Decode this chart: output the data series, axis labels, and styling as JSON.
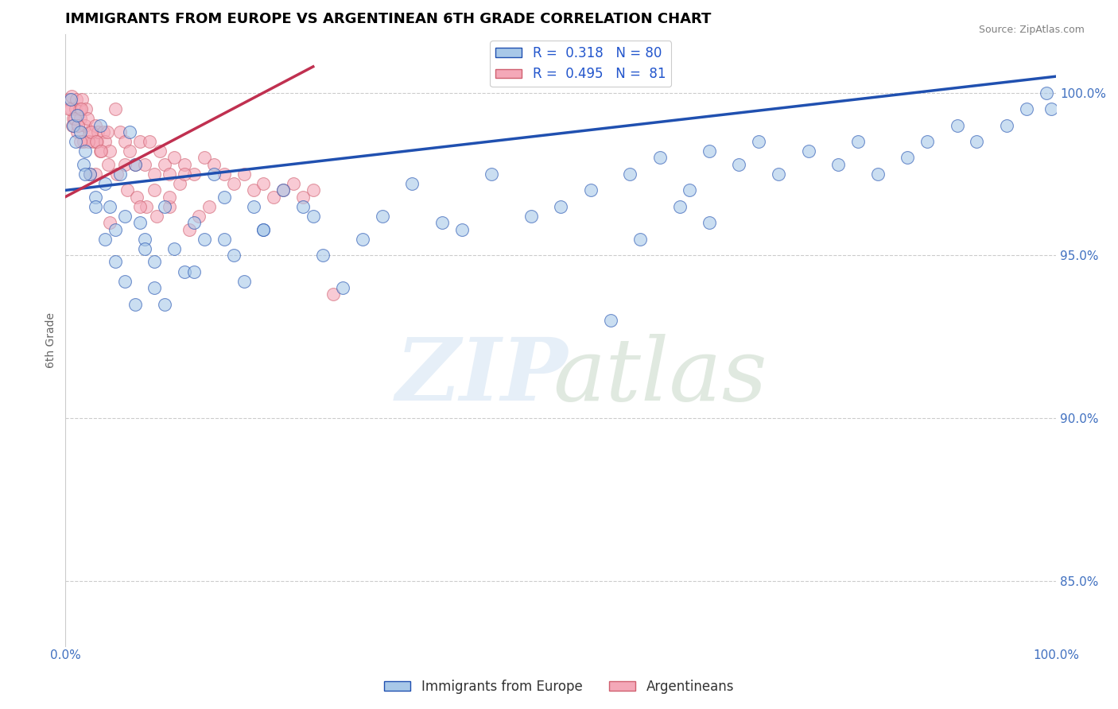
{
  "title": "IMMIGRANTS FROM EUROPE VS ARGENTINEAN 6TH GRADE CORRELATION CHART",
  "source": "Source: ZipAtlas.com",
  "ylabel": "6th Grade",
  "xlim": [
    0.0,
    100.0
  ],
  "ylim": [
    83.0,
    101.8
  ],
  "yticks": [
    85.0,
    90.0,
    95.0,
    100.0
  ],
  "ytick_labels": [
    "85.0%",
    "90.0%",
    "95.0%",
    "100.0%"
  ],
  "xtick_labels": [
    "0.0%",
    "100.0%"
  ],
  "blue_color": "#a8c8e8",
  "pink_color": "#f4a8b8",
  "trend_blue_color": "#2050b0",
  "trend_pink_color": "#c03050",
  "blue_R": 0.318,
  "blue_N": 80,
  "pink_R": 0.495,
  "pink_N": 81,
  "blue_trend_x": [
    0.0,
    100.0
  ],
  "blue_trend_y": [
    97.0,
    100.5
  ],
  "pink_trend_x": [
    0.0,
    25.0
  ],
  "pink_trend_y": [
    96.8,
    100.8
  ],
  "blue_scatter_x": [
    0.5,
    0.8,
    1.0,
    1.2,
    1.5,
    1.8,
    2.0,
    2.5,
    3.0,
    3.5,
    4.0,
    4.5,
    5.0,
    5.5,
    6.0,
    6.5,
    7.0,
    7.5,
    8.0,
    9.0,
    10.0,
    11.0,
    12.0,
    13.0,
    14.0,
    15.0,
    16.0,
    17.0,
    18.0,
    19.0,
    20.0,
    22.0,
    24.0,
    26.0,
    28.0,
    30.0,
    32.0,
    35.0,
    38.0,
    40.0,
    43.0,
    47.0,
    50.0,
    53.0,
    57.0,
    60.0,
    63.0,
    65.0,
    68.0,
    72.0,
    75.0,
    78.0,
    80.0,
    82.0,
    85.0,
    87.0,
    90.0,
    92.0,
    95.0,
    97.0,
    99.0,
    99.5,
    55.0,
    58.0,
    62.0,
    65.0,
    70.0,
    2.0,
    3.0,
    4.0,
    5.0,
    6.0,
    7.0,
    8.0,
    9.0,
    10.0,
    13.0,
    16.0,
    20.0,
    25.0
  ],
  "blue_scatter_y": [
    99.8,
    99.0,
    98.5,
    99.3,
    98.8,
    97.8,
    98.2,
    97.5,
    96.8,
    99.0,
    97.2,
    96.5,
    95.8,
    97.5,
    96.2,
    98.8,
    97.8,
    96.0,
    95.5,
    94.8,
    96.5,
    95.2,
    94.5,
    96.0,
    95.5,
    97.5,
    96.8,
    95.0,
    94.2,
    96.5,
    95.8,
    97.0,
    96.5,
    95.0,
    94.0,
    95.5,
    96.2,
    97.2,
    96.0,
    95.8,
    97.5,
    96.2,
    96.5,
    97.0,
    97.5,
    98.0,
    97.0,
    98.2,
    97.8,
    97.5,
    98.2,
    97.8,
    98.5,
    97.5,
    98.0,
    98.5,
    99.0,
    98.5,
    99.0,
    99.5,
    100.0,
    99.5,
    93.0,
    95.5,
    96.5,
    96.0,
    98.5,
    97.5,
    96.5,
    95.5,
    94.8,
    94.2,
    93.5,
    95.2,
    94.0,
    93.5,
    94.5,
    95.5,
    95.8,
    96.2
  ],
  "pink_scatter_x": [
    0.3,
    0.5,
    0.6,
    0.8,
    1.0,
    1.1,
    1.2,
    1.4,
    1.5,
    1.7,
    1.8,
    2.0,
    2.1,
    2.2,
    2.5,
    2.8,
    3.0,
    3.2,
    3.3,
    3.5,
    3.8,
    4.0,
    4.2,
    4.5,
    5.0,
    5.5,
    6.0,
    6.5,
    7.0,
    7.5,
    8.0,
    8.5,
    9.0,
    9.5,
    10.0,
    10.5,
    11.0,
    11.5,
    12.0,
    13.0,
    14.0,
    15.0,
    16.0,
    17.0,
    18.0,
    19.0,
    20.0,
    21.0,
    22.0,
    23.0,
    24.0,
    25.0,
    0.4,
    0.7,
    0.9,
    1.3,
    1.6,
    2.3,
    2.6,
    3.1,
    3.6,
    4.3,
    5.2,
    6.2,
    7.2,
    8.2,
    9.2,
    10.5,
    12.5,
    14.5,
    3.0,
    4.5,
    6.0,
    7.5,
    9.0,
    10.5,
    12.0,
    13.5,
    27.0,
    1.5,
    2.5
  ],
  "pink_scatter_y": [
    99.8,
    99.5,
    99.9,
    99.2,
    99.5,
    99.8,
    98.8,
    99.5,
    99.2,
    99.8,
    98.5,
    99.0,
    99.5,
    99.2,
    98.8,
    98.5,
    99.0,
    98.5,
    98.8,
    98.2,
    98.8,
    98.5,
    98.8,
    98.2,
    99.5,
    98.8,
    98.5,
    98.2,
    97.8,
    98.5,
    97.8,
    98.5,
    97.5,
    98.2,
    97.8,
    97.5,
    98.0,
    97.2,
    97.8,
    97.5,
    98.0,
    97.8,
    97.5,
    97.2,
    97.5,
    97.0,
    97.2,
    96.8,
    97.0,
    97.2,
    96.8,
    97.0,
    99.5,
    99.0,
    99.2,
    99.0,
    99.5,
    98.5,
    98.8,
    98.5,
    98.2,
    97.8,
    97.5,
    97.0,
    96.8,
    96.5,
    96.2,
    96.5,
    95.8,
    96.5,
    97.5,
    96.0,
    97.8,
    96.5,
    97.0,
    96.8,
    97.5,
    96.2,
    93.8,
    98.5,
    97.5
  ]
}
